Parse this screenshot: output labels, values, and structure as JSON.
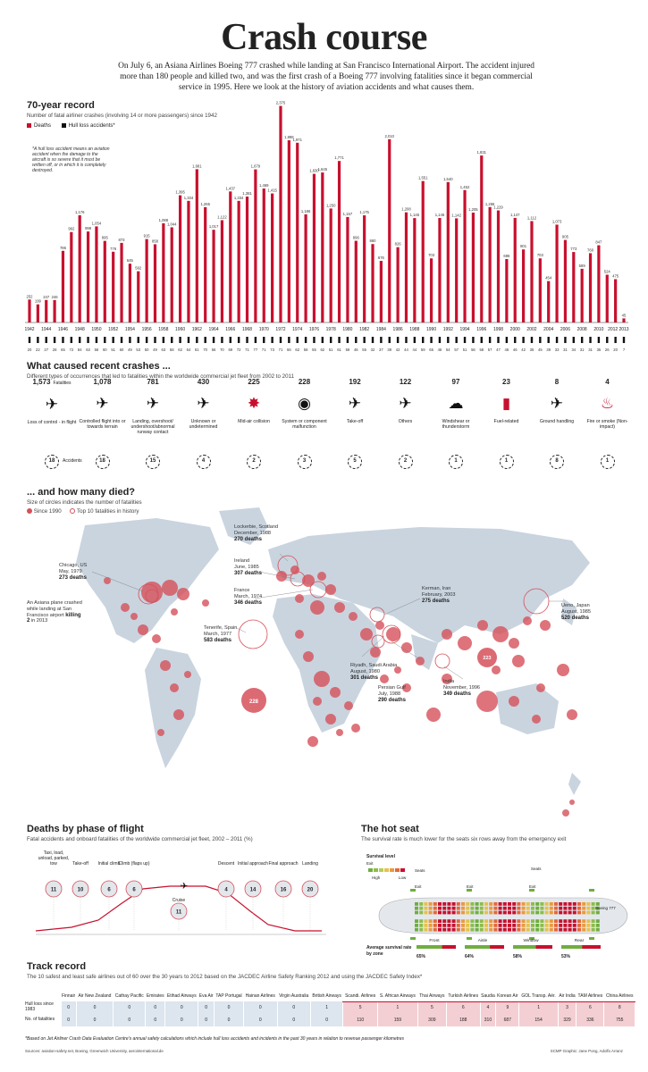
{
  "header": {
    "title": "Crash course",
    "intro": "On July 6, an Asiana Airlines Boeing 777 crashed while landing at San Francisco International Airport. The accident injured more than 180 people and killed two, and was the first crash of a Boeing 777 involving fatalities since it began commercial service in 1995. Here we look at the history of aviation accidents and what causes them."
  },
  "record": {
    "title": "70-year record",
    "subtitle": "Number of fatal airliner crashes (involving 14 or more passengers) since 1942",
    "legend_deaths": "Deaths",
    "legend_hull": "Hull loss accidents*",
    "hull_note": "*A hull loss accident means an aviation accident when the damage to the aircraft is so severe that it must be written off, or in which it is completely destroyed.",
    "colors": {
      "deaths": "#c8102e",
      "hull": "#111111"
    }
  },
  "chart_data": {
    "type": "bar",
    "title": "70-year record",
    "x": [
      1942,
      1943,
      1944,
      1945,
      1946,
      1947,
      1948,
      1949,
      1950,
      1951,
      1952,
      1953,
      1954,
      1955,
      1956,
      1957,
      1958,
      1959,
      1960,
      1961,
      1962,
      1963,
      1964,
      1965,
      1966,
      1967,
      1968,
      1969,
      1970,
      1971,
      1972,
      1973,
      1974,
      1975,
      1976,
      1977,
      1978,
      1979,
      1980,
      1981,
      1982,
      1983,
      1984,
      1985,
      1986,
      1987,
      1988,
      1989,
      1990,
      1991,
      1992,
      1993,
      1994,
      1995,
      1996,
      1997,
      1998,
      1999,
      2000,
      2001,
      2002,
      2003,
      2004,
      2005,
      2006,
      2007,
      2008,
      2009,
      2010,
      2011,
      2012,
      2013
    ],
    "x_tick_labels": [
      "1942",
      "1944",
      "1946",
      "1948",
      "1950",
      "1952",
      "1954",
      "1956",
      "1958",
      "1960",
      "1962",
      "1964",
      "1966",
      "1968",
      "1970",
      "1972",
      "1974",
      "1976",
      "1978",
      "1980",
      "1982",
      "1984",
      "1986",
      "1988",
      "1990",
      "1992",
      "1994",
      "1996",
      "1998",
      "2000",
      "2002",
      "2004",
      "2006",
      "2008",
      "2010",
      "2012",
      "2013"
    ],
    "series": [
      {
        "name": "Deaths",
        "values": [
          252,
          199,
          247,
          246,
          786,
          992,
          1176,
          998,
          1054,
          895,
          776,
          873,
          645,
          562,
          915,
          858,
          1088,
          1044,
          1395,
          1334,
          1681,
          1265,
          1017,
          1122,
          1437,
          1334,
          1381,
          1679,
          1469,
          1415,
          2375,
          1998,
          1971,
          1186,
          1630,
          1645,
          1250,
          1771,
          1157,
          896,
          1175,
          860,
          676,
          2010,
          826,
          1208,
          1145,
          1551,
          703,
          1146,
          1540,
          1142,
          1452,
          1205,
          1831,
          1266,
          1229,
          696,
          1147,
          801,
          1112,
          703,
          454,
          1073,
          905,
          773,
          589,
          760,
          847,
          524,
          475,
          45
        ]
      },
      {
        "name": "Hull loss accidents*",
        "values": [
          20,
          22,
          27,
          28,
          65,
          72,
          84,
          63,
          56,
          60,
          51,
          60,
          49,
          53,
          50,
          49,
          63,
          58,
          62,
          64,
          81,
          70,
          56,
          70,
          69,
          72,
          71,
          77,
          71,
          73,
          71,
          66,
          62,
          58,
          55,
          62,
          51,
          61,
          59,
          46,
          55,
          32,
          37,
          39,
          42,
          44,
          44,
          59,
          65,
          46,
          54,
          57,
          51,
          56,
          58,
          57,
          47,
          46,
          46,
          42,
          35,
          45,
          39,
          33,
          31,
          34,
          31,
          31,
          35,
          26,
          20,
          7
        ]
      }
    ],
    "ylim": [
      0,
      2400
    ]
  },
  "causes": {
    "title": "What caused recent crashes ...",
    "subtitle": "Different types of occurrences that led to fatalities within the worldwide commercial jet fleet from 2002 to 2011",
    "fatalities_label": "Fatalities",
    "accidents_label": "Accidents",
    "items": [
      {
        "fatalities": "1,573",
        "label": "Loss of control - in flight",
        "accidents": "18",
        "icon": "plane-banking-icon"
      },
      {
        "fatalities": "1,078",
        "label": "Controlled flight into or towards terrain",
        "accidents": "18",
        "icon": "plane-crash-terrain-icon"
      },
      {
        "fatalities": "781",
        "label": "Landing, overshoot/ undershoot/abnormal runway contact",
        "accidents": "15",
        "icon": "plane-landing-icon"
      },
      {
        "fatalities": "430",
        "label": "Unknown or undetermined",
        "accidents": "4",
        "icon": "plane-question-icon"
      },
      {
        "fatalities": "225",
        "label": "Mid-air collision",
        "accidents": "2",
        "icon": "midair-collision-icon"
      },
      {
        "fatalities": "228",
        "label": "System or component malfunction",
        "accidents": "3",
        "icon": "gauge-icon"
      },
      {
        "fatalities": "192",
        "label": "Take-off",
        "accidents": "5",
        "icon": "plane-takeoff-icon"
      },
      {
        "fatalities": "122",
        "label": "Others",
        "accidents": "2",
        "icon": "plane-small-icon"
      },
      {
        "fatalities": "97",
        "label": "Windshear or thunderstorm",
        "accidents": "1",
        "icon": "storm-cloud-icon"
      },
      {
        "fatalities": "23",
        "label": "Fuel-related",
        "accidents": "1",
        "icon": "fuel-can-icon"
      },
      {
        "fatalities": "8",
        "label": "Ground handling",
        "accidents": "8",
        "icon": "plane-ground-icon"
      },
      {
        "fatalities": "4",
        "label": "Fire or smoke (Non-impact)",
        "accidents": "1",
        "icon": "fire-icon"
      }
    ]
  },
  "map": {
    "title": "... and how many died?",
    "subtitle": "Size of circles indicates the number of fatalities",
    "legend_since": "Since 1990",
    "legend_top": "Top 10 fatalities in history",
    "bubble_228": "228",
    "bubble_223": "223",
    "labels": {
      "lockerbie": {
        "place": "Lockerbie, Scotland",
        "date": "December, 1988",
        "deaths": "270 deaths"
      },
      "ireland": {
        "place": "Ireland",
        "date": "June, 1985",
        "deaths": "307 deaths"
      },
      "chicago": {
        "place": "Chicago, US",
        "date": "May, 1979",
        "deaths": "273 deaths"
      },
      "france": {
        "place": "France",
        "date": "March, 1974",
        "deaths": "346 deaths"
      },
      "kerman": {
        "place": "Kerman, Iran",
        "date": "February, 2003",
        "deaths": "275 deaths"
      },
      "ueno": {
        "place": "Ueno, Japan",
        "date": "August, 1985",
        "deaths": "520 deaths"
      },
      "tenerife": {
        "place": "Tenerife, Spain",
        "date": "March, 1977",
        "deaths": "583 deaths"
      },
      "riyadh": {
        "place": "Riyadh, Saudi Arabia",
        "date": "August, 1980",
        "deaths": "301 deaths"
      },
      "gulf": {
        "place": "Persian Gulf",
        "date": "July, 1988",
        "deaths": "290 deaths"
      },
      "india": {
        "place": "India",
        "date": "November, 1996",
        "deaths": "349 deaths"
      },
      "asiana_pre": "An Asiana plane crashed while landing at San Francisco airport",
      "asiana_bold": "killing 2",
      "asiana_post": "in 2013"
    }
  },
  "phase": {
    "title": "Deaths by phase of flight",
    "subtitle": "Fatal accidents and onboard fatalities of the worldwide commercial jet fleet, 2002 – 2011 (%)",
    "items": [
      {
        "label": "Taxi, load, unload, parked, tow",
        "value": "11"
      },
      {
        "label": "Take-off",
        "value": "10"
      },
      {
        "label": "Initial climb",
        "value": "6"
      },
      {
        "label": "Climb (flaps up)",
        "value": "6"
      },
      {
        "label": "Cruise",
        "value": "11"
      },
      {
        "label": "Descent",
        "value": "4"
      },
      {
        "label": "Initial approach",
        "value": "14"
      },
      {
        "label": "Final approach",
        "value": "16"
      },
      {
        "label": "Landing",
        "value": "20"
      }
    ]
  },
  "seat": {
    "title": "The hot seat",
    "subtitle": "The survival rate is much lower for the seats six rows away from the emergency exit",
    "survival_level": "Survival level",
    "exit": "Exit",
    "seats": "Seats",
    "high": "High",
    "low": "Low",
    "plane": "Boeing 777",
    "avg_label": "Average survival rate by zone",
    "zones": [
      {
        "name": "Front",
        "rate": "65%"
      },
      {
        "name": "Aisle",
        "rate": "64%"
      },
      {
        "name": "Window",
        "rate": "58%"
      },
      {
        "name": "Rear",
        "rate": "53%"
      }
    ]
  },
  "track": {
    "title": "Track record",
    "subtitle": "The 10 safest and least safe airlines out of 60 over the 30 years to 2012 based on the JACDEC Airline Safety Ranking 2012 and using the JACDEC Safety Index*",
    "row1": "Hull loss since 1983",
    "row2": "No. of fatalities",
    "airlines": [
      "Finnair",
      "Air New Zealand",
      "Cathay Pacific",
      "Emirates",
      "Etihad Airways",
      "Eva Air",
      "TAP Portugal",
      "Hainan Airlines",
      "Virgin Australia",
      "British Airways",
      "Scandi. Airlines",
      "S. African Airways",
      "Thai Airways",
      "Turkish Airlines",
      "Saudia",
      "Korean Air",
      "GOL Transp. Aér.",
      "Air India",
      "TAM Airlines",
      "China Airlines"
    ],
    "hull": [
      "0",
      "0",
      "0",
      "0",
      "0",
      "0",
      "0",
      "0",
      "0",
      "1",
      "5",
      "1",
      "5",
      "6",
      "4",
      "9",
      "1",
      "3",
      "6",
      "8"
    ],
    "fatal": [
      "0",
      "0",
      "0",
      "0",
      "0",
      "0",
      "0",
      "0",
      "0",
      "0",
      "110",
      "159",
      "309",
      "188",
      "310",
      "687",
      "154",
      "329",
      "336",
      "755"
    ],
    "footnote": "*Based on Jet Airliner Crash Data Evaluation Centre's annual safety calculations which include hull loss accidents and incidents in the past 30 years in relation to revenue passenger kilometres",
    "sources": "Sources: aviation-safety.net, Boeing, Greenwich University, aerointernational.de",
    "credit": "SCMP Graphic: Jane Pong, Adolfo Arranz"
  }
}
